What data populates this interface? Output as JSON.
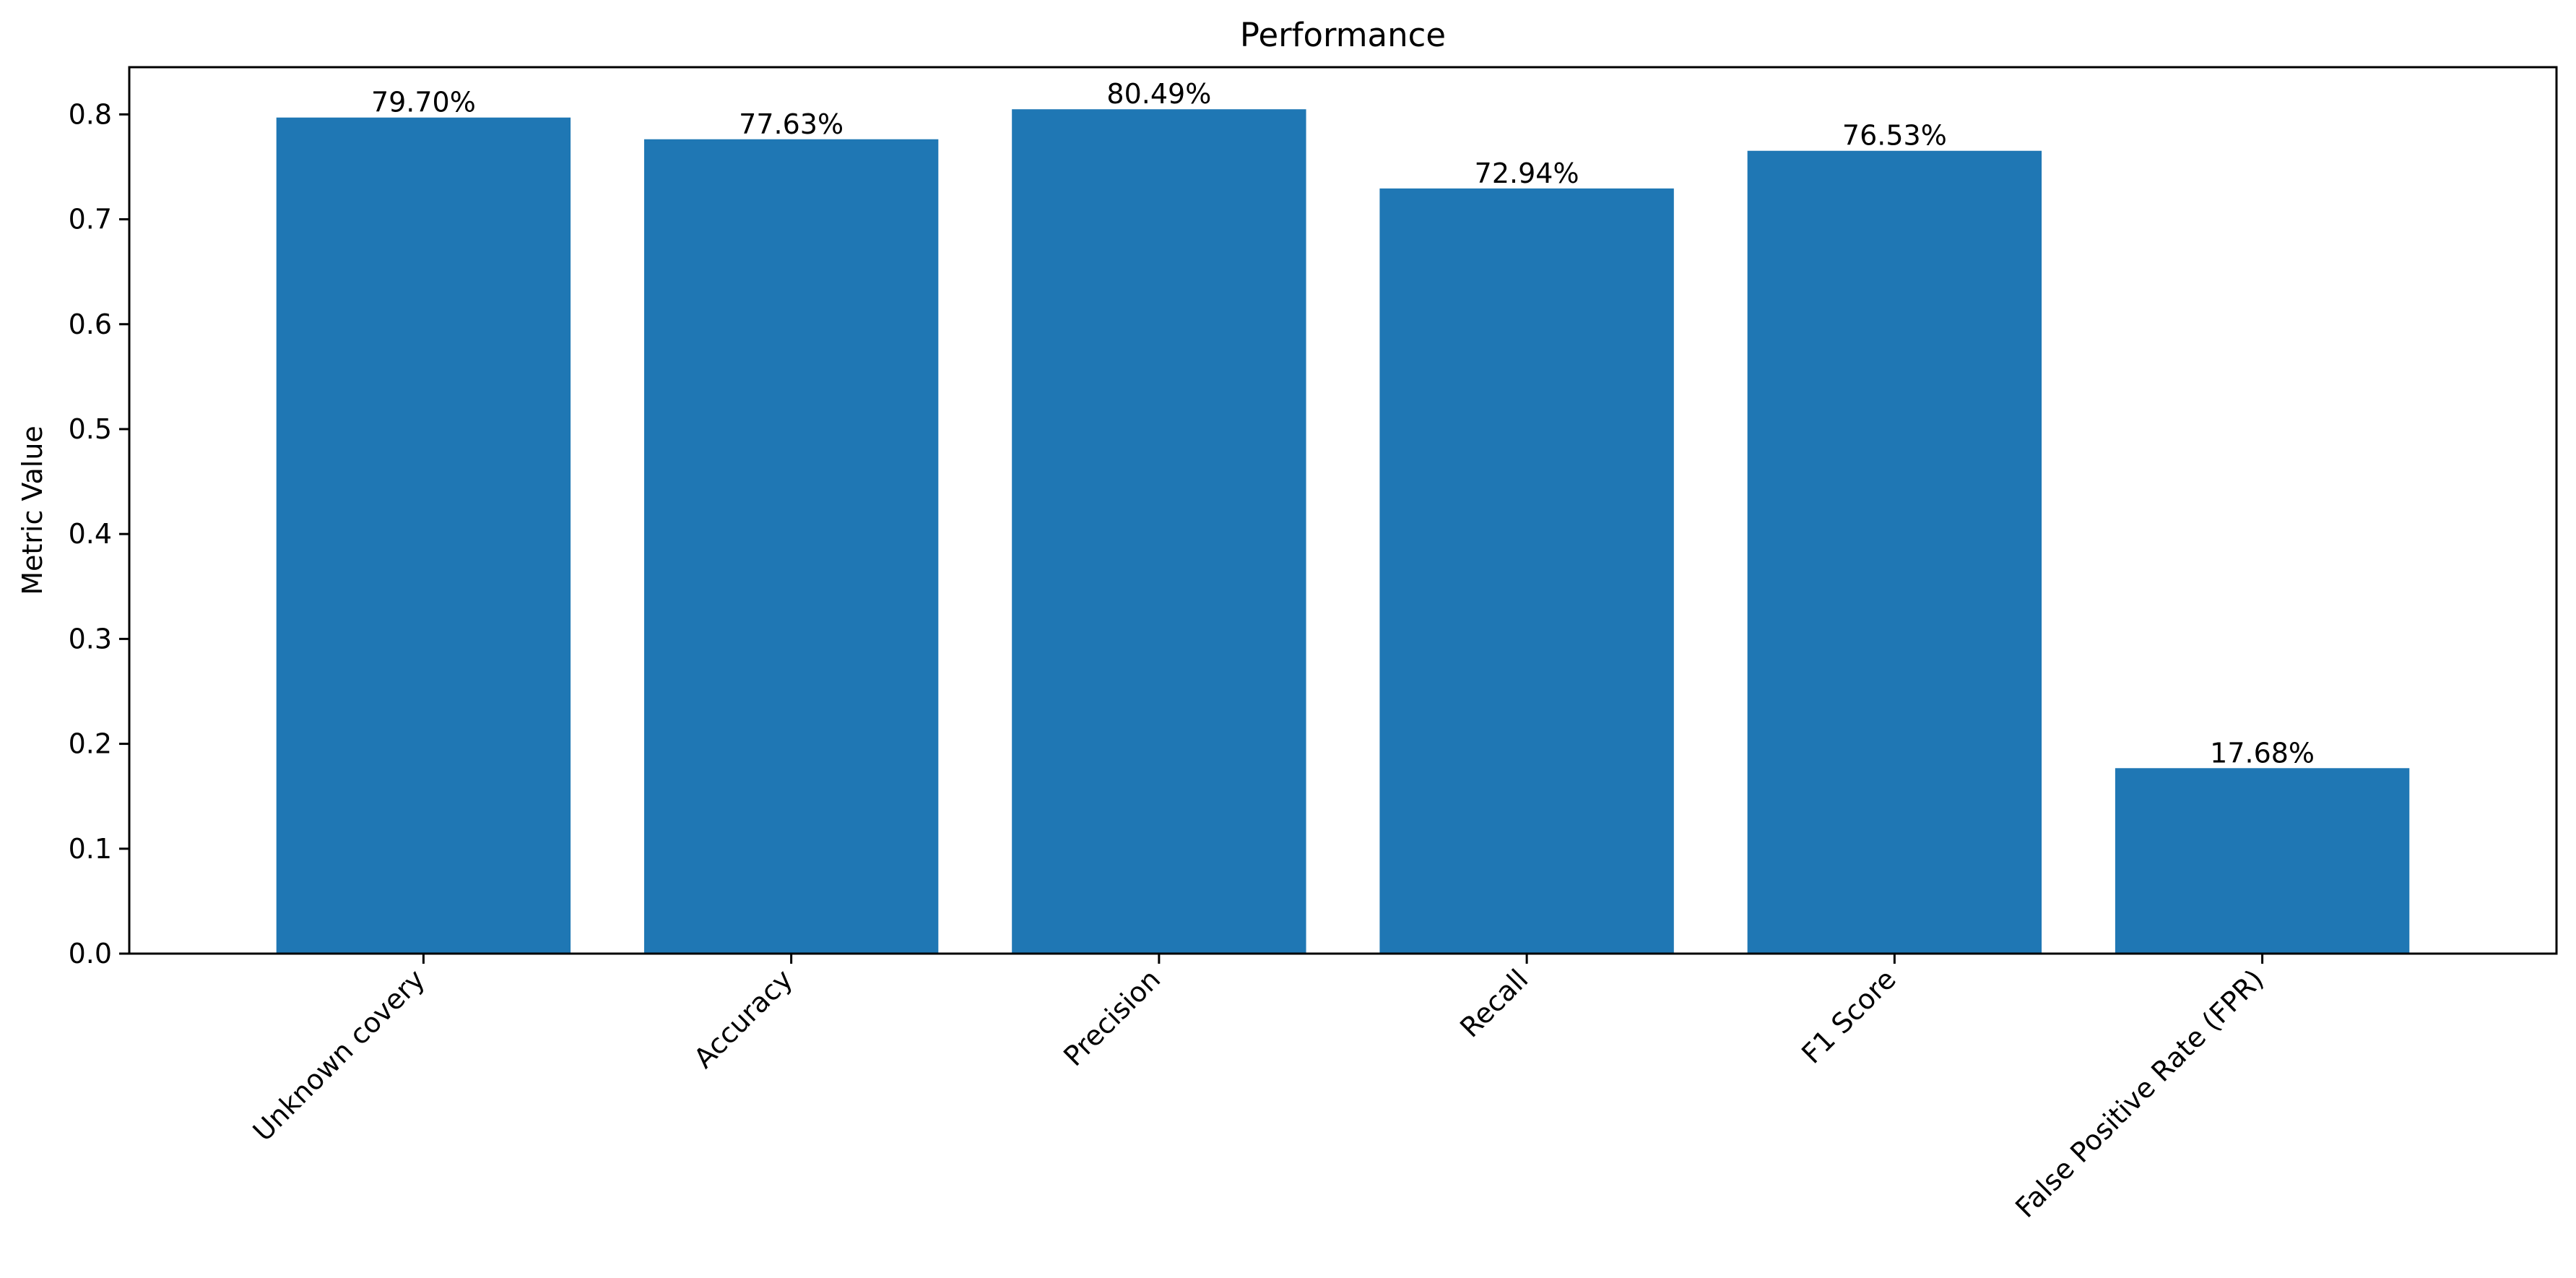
{
  "chart_data": {
    "type": "bar",
    "title": "Performance",
    "xlabel": "",
    "ylabel": "Metric Value",
    "categories": [
      "Unknown covery",
      "Accuracy",
      "Precision",
      "Recall",
      "F1 Score",
      "False Positive Rate (FPR)"
    ],
    "values": [
      0.797,
      0.7763,
      0.8049,
      0.7294,
      0.7653,
      0.1768
    ],
    "data_labels": [
      "79.70%",
      "77.63%",
      "80.49%",
      "72.94%",
      "76.53%",
      "17.68%"
    ],
    "ylim": [
      0,
      0.845
    ],
    "yticks": [
      0.0,
      0.1,
      0.2,
      0.3,
      0.4,
      0.5,
      0.6,
      0.7,
      0.8
    ],
    "ytick_labels": [
      "0.0",
      "0.1",
      "0.2",
      "0.3",
      "0.4",
      "0.5",
      "0.6",
      "0.7",
      "0.8"
    ],
    "bar_color": "#1f77b4",
    "grid": false,
    "legend": "none"
  }
}
